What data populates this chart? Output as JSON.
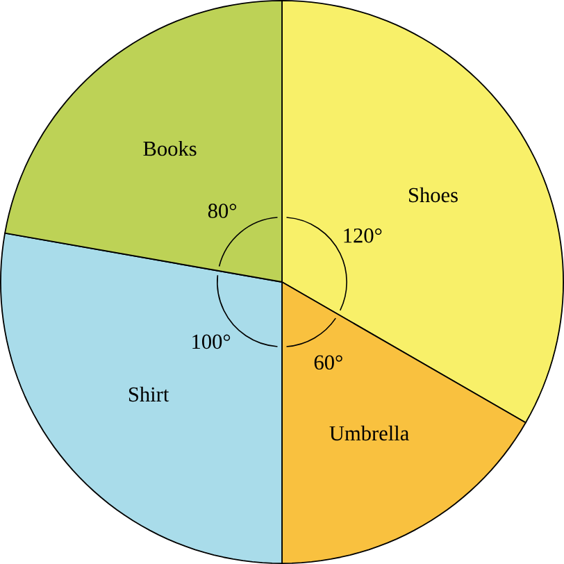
{
  "chart_data": {
    "type": "pie",
    "categories": [
      "Shoes",
      "Umbrella",
      "Shirt",
      "Books"
    ],
    "values": [
      120,
      60,
      100,
      80
    ],
    "colors": [
      "#f8f069",
      "#f9c13f",
      "#a9dcea",
      "#bdd256"
    ],
    "value_labels": [
      "120°",
      "60°",
      "100°",
      "80°"
    ]
  }
}
